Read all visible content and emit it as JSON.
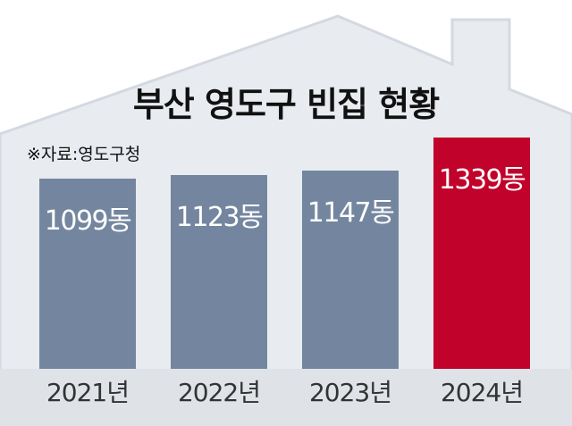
{
  "chart_data": {
    "type": "bar",
    "title": "부산 영도구 빈집 현황",
    "source": "※자료:영도구청",
    "categories": [
      "2021년",
      "2022년",
      "2023년",
      "2024년"
    ],
    "values": [
      1099,
      1123,
      1147,
      1339
    ],
    "data_labels": [
      "1099동",
      "1123동",
      "1147동",
      "1339동"
    ],
    "unit": "동",
    "colors": {
      "bar": "#74869f",
      "highlight": "#c1022b",
      "background": "#e8ebf0",
      "axis_band": "#dfe3e8"
    },
    "highlight_index": 3,
    "grid": false,
    "legend": "none"
  }
}
